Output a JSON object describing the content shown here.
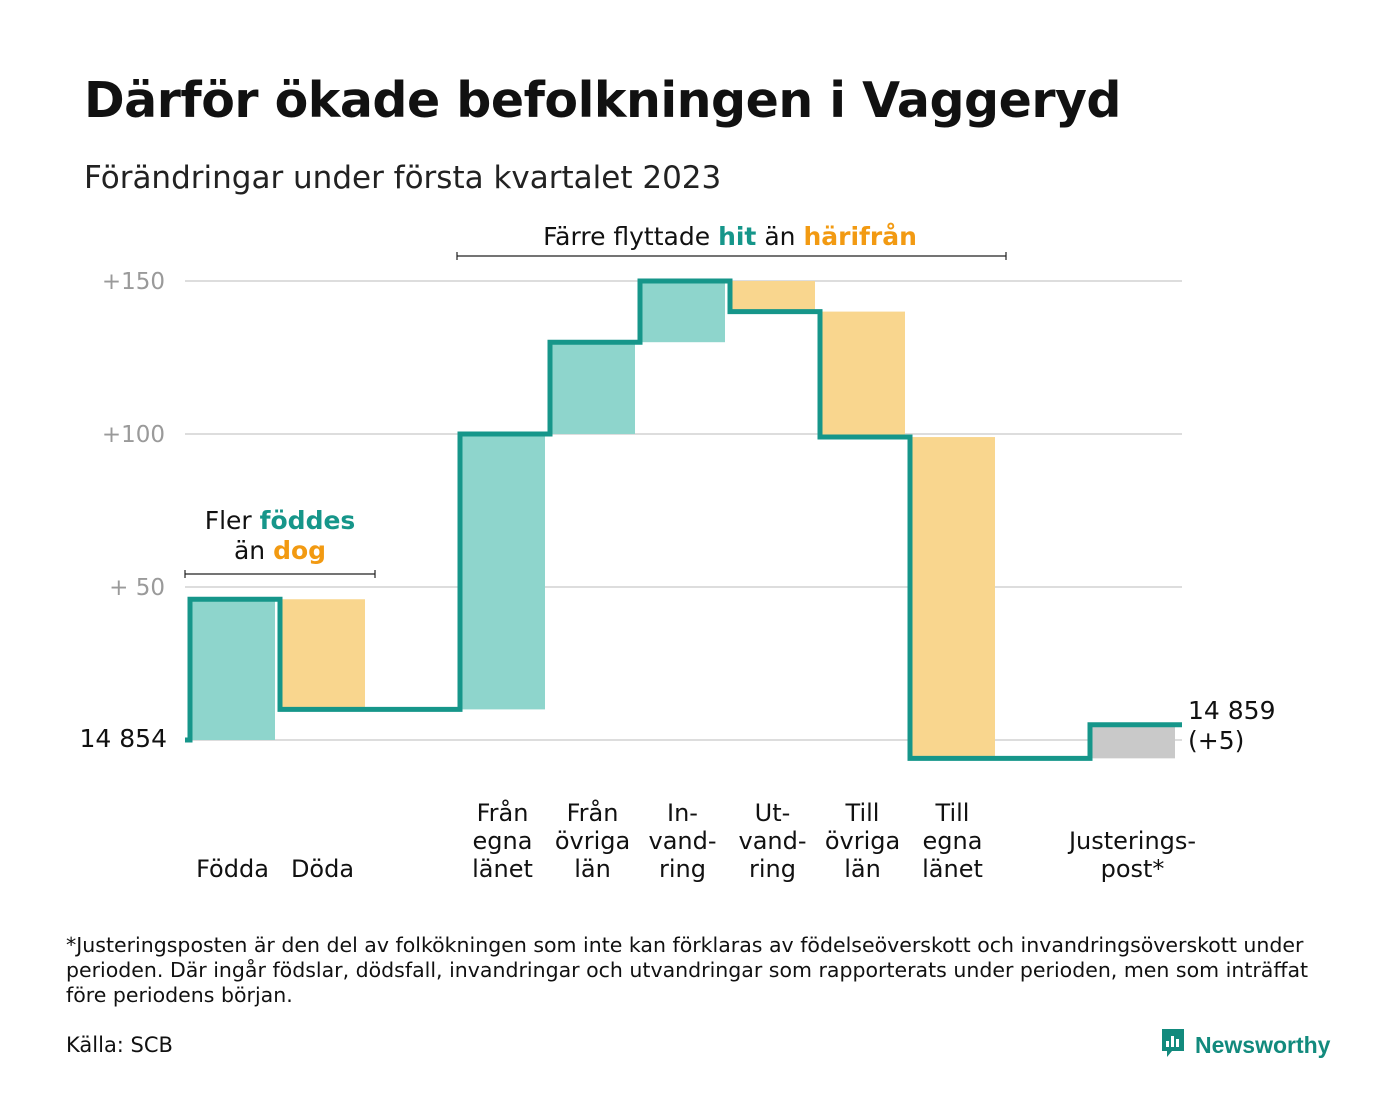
{
  "title": "Därför ökade befolkningen i Vaggeryd",
  "subtitle": "Förändringar under första kvartalet 2023",
  "colors": {
    "line": "#16968a",
    "increase": "#8ed5cc",
    "decrease": "#f9d68e",
    "adjustment": "#c9c9c9",
    "accent_teal": "#16968a",
    "accent_orange": "#f29a12",
    "grid": "#dddddd",
    "tick_label": "#9a9a9a"
  },
  "annotations": {
    "births": {
      "line1_a": "Fler ",
      "line1_b": "föddes",
      "line2_a": "än ",
      "line2_b": "dog"
    },
    "migration": {
      "a": "Färre flyttade ",
      "b": "hit",
      "c": " än ",
      "d": "härifrån"
    }
  },
  "chart_data": {
    "type": "waterfall",
    "title": "Därför ökade befolkningen i Vaggeryd",
    "subtitle": "Förändringar under första kvartalet 2023",
    "base_value": 14854,
    "base_label": "14 854",
    "end_label_value": "14 859",
    "end_label_change": "(+5)",
    "y_axis": {
      "relative_min": -6,
      "relative_max": 152,
      "ticks": [
        {
          "value": 50,
          "label": "+ 50"
        },
        {
          "value": 100,
          "label": "+100"
        },
        {
          "value": 150,
          "label": "+150"
        }
      ]
    },
    "grid": true,
    "steps": [
      {
        "category": "Födda",
        "label_lines": [
          "Födda"
        ],
        "change": 46,
        "kind": "increase"
      },
      {
        "category": "Döda",
        "label_lines": [
          "Döda"
        ],
        "change": -36,
        "kind": "decrease"
      },
      {
        "category": "",
        "label_lines": [],
        "change": 0,
        "kind": "none"
      },
      {
        "category": "Från egna länet",
        "label_lines": [
          "Från",
          "egna",
          "länet"
        ],
        "change": 90,
        "kind": "increase"
      },
      {
        "category": "Från övriga län",
        "label_lines": [
          "Från",
          "övriga",
          "län"
        ],
        "change": 30,
        "kind": "increase"
      },
      {
        "category": "In-vandring",
        "label_lines": [
          "In-",
          "vand-",
          "ring"
        ],
        "change": 20,
        "kind": "increase"
      },
      {
        "category": "Ut-vandring",
        "label_lines": [
          "Ut-",
          "vand-",
          "ring"
        ],
        "change": -10,
        "kind": "decrease"
      },
      {
        "category": "Till övriga län",
        "label_lines": [
          "Till",
          "övriga",
          "län"
        ],
        "change": -41,
        "kind": "decrease"
      },
      {
        "category": "Till egna länet",
        "label_lines": [
          "Till",
          "egna",
          "länet"
        ],
        "change": -105,
        "kind": "decrease"
      },
      {
        "category": "",
        "label_lines": [],
        "change": 0,
        "kind": "none"
      },
      {
        "category": "Justeringspost*",
        "label_lines": [
          "Justerings-",
          "post*"
        ],
        "change": 11,
        "kind": "adjustment"
      }
    ]
  },
  "footnote": "*Justeringsposten är den del av folkökningen som inte kan förklaras av födelseöverskott och invandringsöverskott under perioden. Där ingår födslar, dödsfall, invandringar och utvandringar som rapporterats under perioden, men som inträffat före periodens början.",
  "source": "Källa: SCB",
  "brand": {
    "name": "Newsworthy",
    "icon": "newsworthy-logo-icon"
  }
}
